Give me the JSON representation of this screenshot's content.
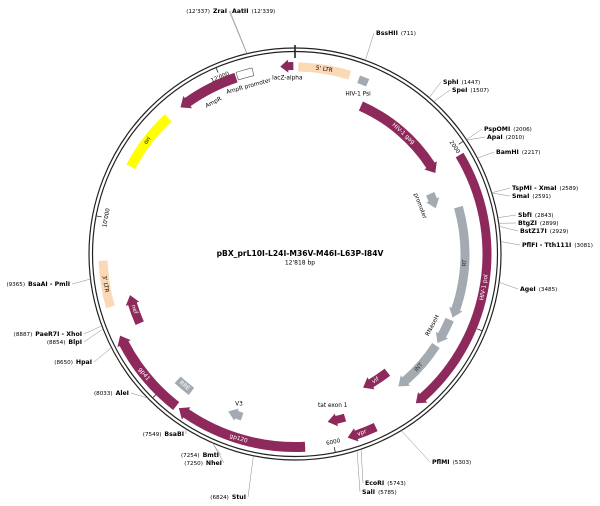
{
  "map": {
    "title": "pBX_prL10I-L24I-M36V-M46I-L63P-I84V",
    "length": 12818,
    "length_label": "12'818 bp",
    "ticks": [
      {
        "value": 2000,
        "label": "2000"
      },
      {
        "value": 4000,
        "label": "4000"
      },
      {
        "value": 6000,
        "label": "6000"
      },
      {
        "value": 8000,
        "label": "8000"
      },
      {
        "value": 10000,
        "label": "10'000"
      },
      {
        "value": 12000,
        "label": "12'000"
      }
    ],
    "sites": [
      {
        "name": "ZraI",
        "position": {
          "value": 12337,
          "label": "(12'337)"
        }
      },
      {
        "name": "AatII",
        "position": {
          "value": 12339,
          "label": "(12'339)"
        }
      },
      {
        "name": "BssHII",
        "position": {
          "value": 711,
          "label": "(711)"
        }
      },
      {
        "name": "SphI",
        "position": {
          "value": 1447,
          "label": "(1447)"
        }
      },
      {
        "name": "SpeI",
        "position": {
          "value": 1507,
          "label": "(1507)"
        }
      },
      {
        "name": "PspOMI",
        "position": {
          "value": 2006,
          "label": "(2006)"
        }
      },
      {
        "name": "ApaI",
        "position": {
          "value": 2010,
          "label": "(2010)"
        }
      },
      {
        "name": "BamHI",
        "position": {
          "value": 2217,
          "label": "(2217)"
        }
      },
      {
        "name": "TspMI - XmaI",
        "position": {
          "value": 2589,
          "label": "(2589)"
        }
      },
      {
        "name": "SmaI",
        "position": {
          "value": 2591,
          "label": "(2591)"
        }
      },
      {
        "name": "SbfI",
        "position": {
          "value": 2843,
          "label": "(2843)"
        }
      },
      {
        "name": "BtgZI",
        "position": {
          "value": 2899,
          "label": "(2899)"
        }
      },
      {
        "name": "BstZ17I",
        "position": {
          "value": 2929,
          "label": "(2929)"
        }
      },
      {
        "name": "PflFI - Tth111I",
        "position": {
          "value": 3081,
          "label": "(3081)"
        }
      },
      {
        "name": "AgeI",
        "position": {
          "value": 3485,
          "label": "(3485)"
        }
      },
      {
        "name": "PflMI",
        "position": {
          "value": 5303,
          "label": "(5303)"
        }
      },
      {
        "name": "EcoRI",
        "position": {
          "value": 5743,
          "label": "(5743)"
        }
      },
      {
        "name": "SalI",
        "position": {
          "value": 5785,
          "label": "(5785)"
        }
      },
      {
        "name": "StuI",
        "position": {
          "value": 6824,
          "label": "(6824)"
        }
      },
      {
        "name": "NheI",
        "position": {
          "value": 7250,
          "label": "(7250)"
        }
      },
      {
        "name": "BmtI",
        "position": {
          "value": 7254,
          "label": "(7254)"
        }
      },
      {
        "name": "BsaBI",
        "position": {
          "value": 7549,
          "label": "(7549)"
        }
      },
      {
        "name": "AleI",
        "position": {
          "value": 8033,
          "label": "(8033)"
        }
      },
      {
        "name": "HpaI",
        "position": {
          "value": 8650,
          "label": "(8650)"
        }
      },
      {
        "name": "BlpI",
        "position": {
          "value": 8854,
          "label": "(8854)"
        }
      },
      {
        "name": "PaeR7I - XhoI",
        "position": {
          "value": 8887,
          "label": "(8887)"
        }
      },
      {
        "name": "BsaAI - PmlI",
        "position": {
          "value": 9365,
          "label": "(9365)"
        }
      }
    ],
    "features": [
      {
        "name": "5' LTR"
      },
      {
        "name": "HIV-1 Psi"
      },
      {
        "name": "lacZ-alpha"
      },
      {
        "name": "HIV-1 gag"
      },
      {
        "name": "promoter"
      },
      {
        "name": "RT"
      },
      {
        "name": "HIV-1 pol"
      },
      {
        "name": "RNaseH"
      },
      {
        "name": "INT"
      },
      {
        "name": "vif"
      },
      {
        "name": "tat exon 1"
      },
      {
        "name": "vpr"
      },
      {
        "name": "gp120"
      },
      {
        "name": "V3"
      },
      {
        "name": "RRE"
      },
      {
        "name": "gp41"
      },
      {
        "name": "nef"
      },
      {
        "name": "3' LTR"
      },
      {
        "name": "ori"
      },
      {
        "name": "AmpR"
      },
      {
        "name": "AmpR promoter"
      }
    ]
  }
}
